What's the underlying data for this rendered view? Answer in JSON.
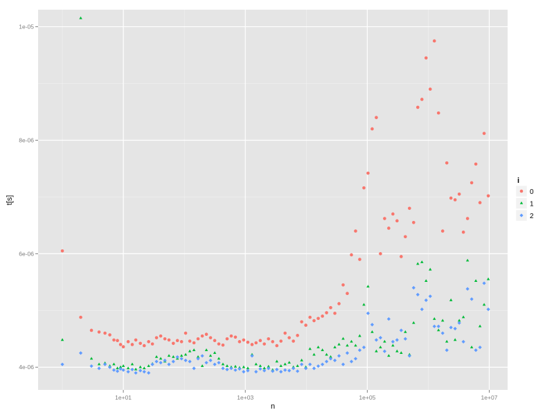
{
  "chart_data": {
    "type": "scatter",
    "title": "",
    "xlabel": "n",
    "ylabel": "t[s]",
    "x_scale": "log10",
    "xlim": [
      0.4,
      20000000
    ],
    "ylim": [
      3.6e-06,
      1.03e-05
    ],
    "x_ticks": [
      10,
      1000,
      100000,
      10000000
    ],
    "x_tick_labels": [
      "1e+01",
      "1e+03",
      "1e+05",
      "1e+07"
    ],
    "y_ticks": [
      4e-06,
      6e-06,
      8e-06,
      1e-05
    ],
    "y_tick_labels": [
      "4e-06",
      "6e-06",
      "8e-06",
      "1e-05"
    ],
    "grid": true,
    "legend": {
      "title": "i",
      "position": "right"
    },
    "series": [
      {
        "name": "0",
        "color": "#F8766D",
        "x": [
          1,
          2,
          3,
          4,
          5,
          6,
          7,
          8,
          9,
          10,
          12,
          14,
          16,
          19,
          22,
          26,
          30,
          35,
          41,
          48,
          56,
          66,
          77,
          90,
          105,
          123,
          144,
          168,
          197,
          230,
          269,
          315,
          368,
          430,
          503,
          588,
          688,
          804,
          940,
          1100,
          1290,
          1500,
          1760,
          2050,
          2400,
          2810,
          3290,
          3840,
          4490,
          5250,
          6140,
          7180,
          8400,
          9820,
          11500,
          13400,
          15700,
          18400,
          21500,
          25100,
          29400,
          34400,
          40200,
          47000,
          55000,
          64300,
          75200,
          88000,
          102900,
          120300,
          140700,
          164500,
          192400,
          225000,
          263100,
          307700,
          359900,
          420900,
          492200,
          575700,
          673200,
          787300,
          920700,
          1076800,
          1259300,
          1472700,
          1722300,
          2014200,
          2355600,
          2754800,
          3221700,
          3767800,
          4406400,
          5153300,
          6026800,
          7048300,
          8242900,
          9640000
        ],
        "y": [
          6.05e-06,
          4.88e-06,
          4.65e-06,
          4.62e-06,
          4.6e-06,
          4.57e-06,
          4.48e-06,
          4.47e-06,
          4.4e-06,
          4.36e-06,
          4.45e-06,
          4.4e-06,
          4.48e-06,
          4.42e-06,
          4.38e-06,
          4.45e-06,
          4.41e-06,
          4.52e-06,
          4.55e-06,
          4.5e-06,
          4.48e-06,
          4.42e-06,
          4.47e-06,
          4.45e-06,
          4.6e-06,
          4.46e-06,
          4.43e-06,
          4.5e-06,
          4.55e-06,
          4.58e-06,
          4.52e-06,
          4.47e-06,
          4.41e-06,
          4.39e-06,
          4.5e-06,
          4.55e-06,
          4.53e-06,
          4.45e-06,
          4.48e-06,
          4.44e-06,
          4.4e-06,
          4.43e-06,
          4.47e-06,
          4.41e-06,
          4.5e-06,
          4.45e-06,
          4.38e-06,
          4.46e-06,
          4.6e-06,
          4.52e-06,
          4.46e-06,
          4.56e-06,
          4.8e-06,
          4.74e-06,
          4.88e-06,
          4.82e-06,
          4.86e-06,
          4.9e-06,
          4.96e-06,
          5.05e-06,
          4.95e-06,
          5.12e-06,
          5.45e-06,
          5.3e-06,
          5.98e-06,
          6.4e-06,
          5.9e-06,
          7.16e-06,
          7.42e-06,
          8.2e-06,
          8.4e-06,
          6e-06,
          6.62e-06,
          6.45e-06,
          6.7e-06,
          6.58e-06,
          5.95e-06,
          6.3e-06,
          6.8e-06,
          6.55e-06,
          8.58e-06,
          8.72e-06,
          9.45e-06,
          8.9e-06,
          9.75e-06,
          8.48e-06,
          6.4e-06,
          7.6e-06,
          6.98e-06,
          6.95e-06,
          7.05e-06,
          6.38e-06,
          6.62e-06,
          7.25e-06,
          7.58e-06,
          6.9e-06,
          8.12e-06,
          7.02e-06
        ]
      },
      {
        "name": "1",
        "color": "#00BA38",
        "x": [
          1,
          2,
          3,
          4,
          5,
          6,
          7,
          8,
          9,
          10,
          12,
          14,
          16,
          19,
          22,
          26,
          30,
          35,
          41,
          48,
          56,
          66,
          77,
          90,
          105,
          123,
          144,
          168,
          197,
          230,
          269,
          315,
          368,
          430,
          503,
          588,
          688,
          804,
          940,
          1100,
          1290,
          1500,
          1760,
          2050,
          2400,
          2810,
          3290,
          3840,
          4490,
          5250,
          6140,
          7180,
          8400,
          9820,
          11500,
          13400,
          15700,
          18400,
          21500,
          25100,
          29400,
          34400,
          40200,
          47000,
          55000,
          64300,
          75200,
          88000,
          102900,
          120300,
          140700,
          164500,
          192400,
          225000,
          263100,
          307700,
          359900,
          420900,
          492200,
          575700,
          673200,
          787300,
          920700,
          1076800,
          1259300,
          1472700,
          1722300,
          2014200,
          2355600,
          2754800,
          3221700,
          3767800,
          4406400,
          5153300,
          6026800,
          7048300,
          8242900,
          9640000
        ],
        "y": [
          4.48e-06,
          1.015e-05,
          4.15e-06,
          4.05e-06,
          4.07e-06,
          4.02e-06,
          4.05e-06,
          3.98e-06,
          4e-06,
          4.02e-06,
          3.98e-06,
          4.05e-06,
          3.96e-06,
          4e-06,
          3.98e-06,
          4.02e-06,
          4.06e-06,
          4.18e-06,
          4.15e-06,
          4.1e-06,
          4.2e-06,
          4.18e-06,
          4.15e-06,
          4.2e-06,
          4.22e-06,
          4.28e-06,
          4.3e-06,
          4.18e-06,
          4.02e-06,
          4.3e-06,
          4.2e-06,
          4.25e-06,
          4.15e-06,
          4.05e-06,
          4.02e-06,
          4e-06,
          4.01e-06,
          3.99e-06,
          4e-06,
          3.98e-06,
          4.22e-06,
          4.05e-06,
          4.02e-06,
          3.98e-06,
          4.01e-06,
          3.95e-06,
          4.1e-06,
          4.02e-06,
          4.05e-06,
          4.08e-06,
          4e-06,
          4.02e-06,
          4.12e-06,
          4e-06,
          4.32e-06,
          4.22e-06,
          4.35e-06,
          4.3e-06,
          4.22e-06,
          4.18e-06,
          4.35e-06,
          4.4e-06,
          4.5e-06,
          4.38e-06,
          4.45e-06,
          4.38e-06,
          4.55e-06,
          5.1e-06,
          5.42e-06,
          4.62e-06,
          4.28e-06,
          4.35e-06,
          4.45e-06,
          4.2e-06,
          4.38e-06,
          4.28e-06,
          4.25e-06,
          4.62e-06,
          4.22e-06,
          4.78e-06,
          5.82e-06,
          5.85e-06,
          5.52e-06,
          5.72e-06,
          4.85e-06,
          4.65e-06,
          4.82e-06,
          4.45e-06,
          5.18e-06,
          4.48e-06,
          4.82e-06,
          4.88e-06,
          5.88e-06,
          4.35e-06,
          5.52e-06,
          4.72e-06,
          5.1e-06,
          5.55e-06
        ]
      },
      {
        "name": "2",
        "color": "#619CFF",
        "x": [
          1,
          2,
          3,
          4,
          5,
          6,
          7,
          8,
          9,
          10,
          12,
          14,
          16,
          19,
          22,
          26,
          30,
          35,
          41,
          48,
          56,
          66,
          77,
          90,
          105,
          123,
          144,
          168,
          197,
          230,
          269,
          315,
          368,
          430,
          503,
          588,
          688,
          804,
          940,
          1100,
          1290,
          1500,
          1760,
          2050,
          2400,
          2810,
          3290,
          3840,
          4490,
          5250,
          6140,
          7180,
          8400,
          9820,
          11500,
          13400,
          15700,
          18400,
          21500,
          25100,
          29400,
          34400,
          40200,
          47000,
          55000,
          64300,
          75200,
          88000,
          102900,
          120300,
          140700,
          164500,
          192400,
          225000,
          263100,
          307700,
          359900,
          420900,
          492200,
          575700,
          673200,
          787300,
          920700,
          1076800,
          1259300,
          1472700,
          1722300,
          2014200,
          2355600,
          2754800,
          3221700,
          3767800,
          4406400,
          5153300,
          6026800,
          7048300,
          8242900,
          9640000
        ],
        "y": [
          4.05e-06,
          4.25e-06,
          4.02e-06,
          3.98e-06,
          4.05e-06,
          4e-06,
          3.95e-06,
          3.93e-06,
          3.97e-06,
          3.95e-06,
          3.92e-06,
          3.96e-06,
          3.9e-06,
          3.94e-06,
          3.92e-06,
          3.9e-06,
          4.05e-06,
          4.1e-06,
          4.08e-06,
          4.12e-06,
          4.05e-06,
          4.1e-06,
          4.18e-06,
          4.15e-06,
          4.12e-06,
          4.1e-06,
          3.98e-06,
          4.15e-06,
          4.2e-06,
          4.08e-06,
          4.12e-06,
          4.05e-06,
          4.08e-06,
          3.98e-06,
          3.96e-06,
          3.98e-06,
          3.95e-06,
          3.97e-06,
          3.92e-06,
          3.94e-06,
          4.2e-06,
          3.92e-06,
          3.97e-06,
          3.94e-06,
          3.98e-06,
          3.93e-06,
          3.96e-06,
          3.92e-06,
          3.95e-06,
          3.94e-06,
          3.98e-06,
          3.93e-06,
          4.05e-06,
          3.98e-06,
          4.05e-06,
          3.98e-06,
          4.02e-06,
          4.05e-06,
          4.1e-06,
          4.15e-06,
          4.12e-06,
          4.2e-06,
          4.05e-06,
          4.25e-06,
          4.1e-06,
          4.15e-06,
          4.3e-06,
          4.35e-06,
          4.95e-06,
          4.75e-06,
          4.48e-06,
          4.52e-06,
          4.28e-06,
          4.85e-06,
          4.45e-06,
          4.48e-06,
          4.65e-06,
          4.5e-06,
          4.2e-06,
          5.4e-06,
          5.28e-06,
          5.02e-06,
          5.18e-06,
          5.25e-06,
          4.72e-06,
          4.72e-06,
          4.6e-06,
          4.3e-06,
          4.7e-06,
          4.68e-06,
          4.78e-06,
          4.45e-06,
          5.38e-06,
          5.2e-06,
          4.3e-06,
          4.35e-06,
          5.48e-06,
          5.02e-06
        ]
      }
    ]
  }
}
